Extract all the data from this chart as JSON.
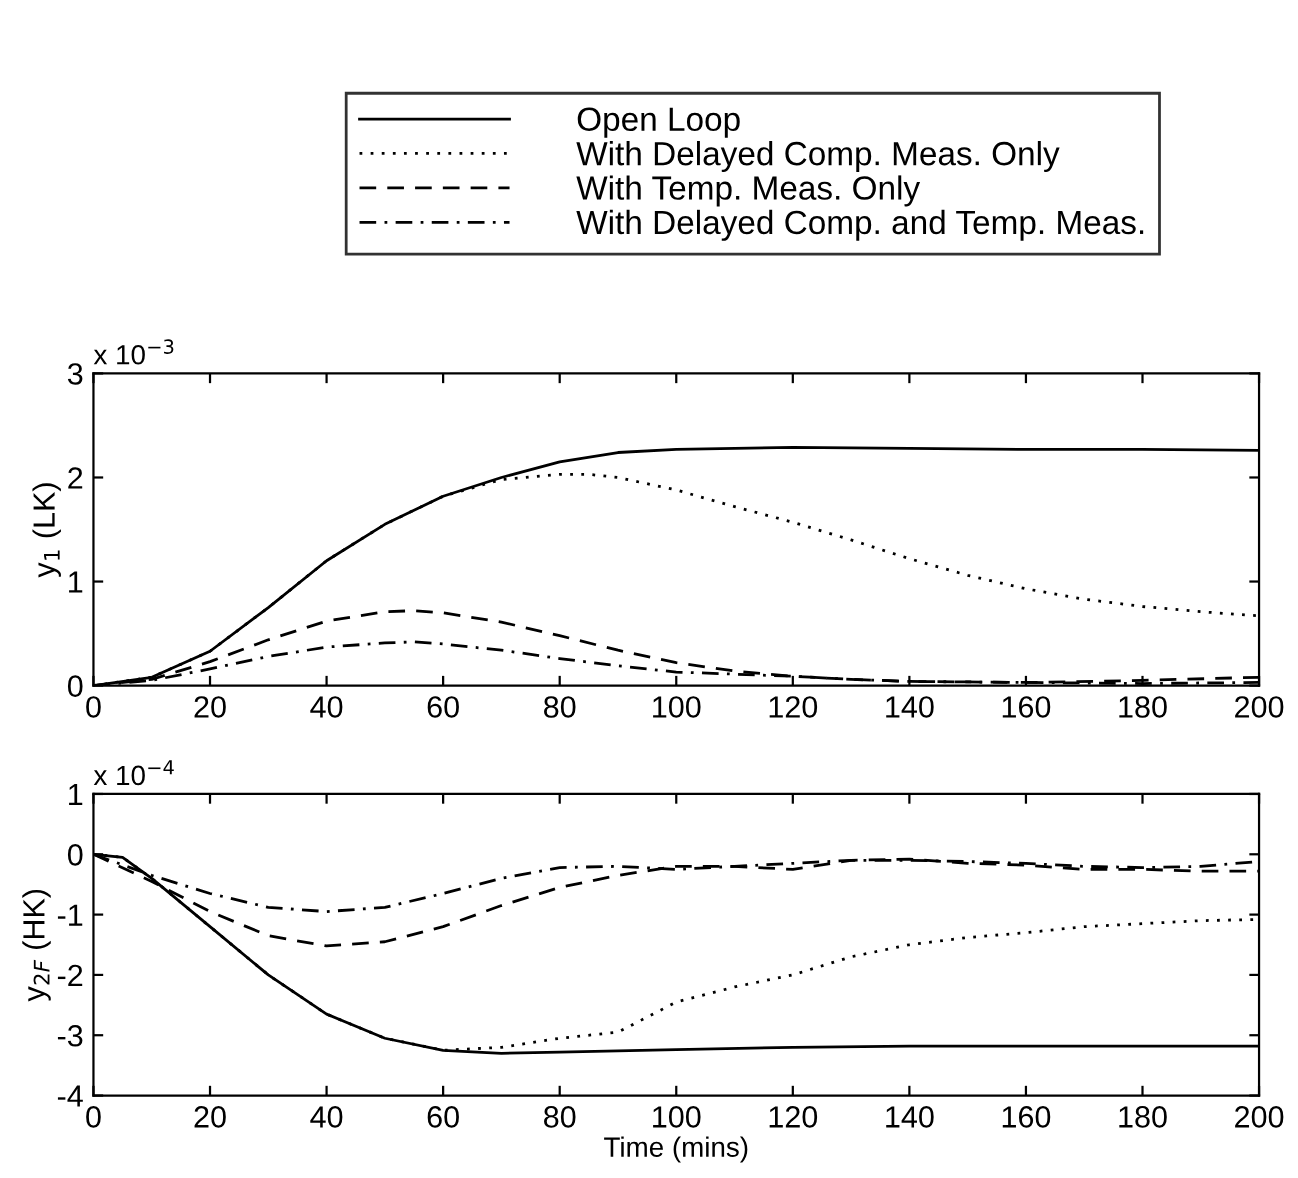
{
  "chart_data": [
    {
      "type": "line",
      "ylabel": "y$_{1}$ (LK)",
      "legend": "top",
      "grid": false,
      "tick_labels": true,
      "xlim": [
        0,
        200
      ],
      "xticks": [
        0,
        20,
        40,
        60,
        80,
        100,
        120,
        140,
        160,
        180,
        200
      ],
      "ylim": [
        0,
        3
      ],
      "yticks": [
        0,
        1,
        2,
        3
      ],
      "annotations": [
        "x 10$^{−3}$"
      ],
      "series": [
        {
          "name": "Open Loop",
          "color": "#000000",
          "line_style": "solid",
          "x": [
            0,
            10,
            20,
            30,
            40,
            50,
            60,
            70,
            80,
            90,
            100,
            120,
            140,
            160,
            180,
            200
          ],
          "values": [
            0,
            0.08,
            0.33,
            0.75,
            1.2,
            1.55,
            1.82,
            2.0,
            2.15,
            2.24,
            2.27,
            2.29,
            2.28,
            2.27,
            2.27,
            2.26
          ]
        },
        {
          "name": "With Delayed Comp. Meas. Only",
          "color": "#000000",
          "line_style": "dotted",
          "x": [
            0,
            10,
            20,
            30,
            40,
            50,
            60,
            70,
            80,
            85,
            90,
            100,
            110,
            120,
            130,
            140,
            150,
            160,
            170,
            180,
            190,
            200
          ],
          "values": [
            0,
            0.08,
            0.33,
            0.75,
            1.2,
            1.55,
            1.82,
            1.98,
            2.03,
            2.03,
            2.0,
            1.88,
            1.72,
            1.57,
            1.4,
            1.22,
            1.06,
            0.93,
            0.83,
            0.76,
            0.71,
            0.67
          ]
        },
        {
          "name": "With Temp. Meas. Only",
          "color": "#000000",
          "line_style": "dashed",
          "x": [
            0,
            10,
            20,
            30,
            40,
            50,
            55,
            60,
            70,
            80,
            90,
            100,
            110,
            120,
            130,
            140,
            160,
            180,
            200
          ],
          "values": [
            0,
            0.06,
            0.23,
            0.44,
            0.62,
            0.71,
            0.72,
            0.7,
            0.61,
            0.48,
            0.34,
            0.22,
            0.14,
            0.09,
            0.06,
            0.04,
            0.03,
            0.05,
            0.08
          ]
        },
        {
          "name": "With Delayed Comp. and Temp. Meas.",
          "color": "#000000",
          "line_style": "dashdot",
          "x": [
            0,
            10,
            20,
            30,
            40,
            50,
            55,
            60,
            70,
            80,
            90,
            100,
            110,
            120,
            130,
            140,
            160,
            180,
            200
          ],
          "values": [
            0,
            0.05,
            0.16,
            0.28,
            0.37,
            0.41,
            0.42,
            0.4,
            0.34,
            0.26,
            0.19,
            0.13,
            0.11,
            0.09,
            0.06,
            0.04,
            0.03,
            0.02,
            0.03
          ]
        }
      ]
    },
    {
      "type": "line",
      "xlabel": "Time (mins)",
      "ylabel": "y$_{2F}$ (HK)",
      "grid": false,
      "xlim": [
        0,
        200
      ],
      "xticks": [
        0,
        20,
        40,
        60,
        80,
        100,
        120,
        140,
        160,
        180,
        200
      ],
      "ylim": [
        -4,
        1
      ],
      "yticks": [
        -4,
        -3,
        -2,
        -1,
        0,
        1
      ],
      "annotations": [
        "x 10$^{−4}$"
      ],
      "series": [
        {
          "color": "#000000",
          "line_style": "solid",
          "x": [
            0,
            5,
            10,
            20,
            30,
            40,
            50,
            60,
            70,
            80,
            100,
            120,
            140,
            160,
            200
          ],
          "values": [
            0,
            -0.05,
            -0.4,
            -1.2,
            -2.0,
            -2.65,
            -3.05,
            -3.25,
            -3.3,
            -3.28,
            -3.24,
            -3.2,
            -3.18,
            -3.18,
            -3.18
          ]
        },
        {
          "color": "#000000",
          "line_style": "dotted",
          "x": [
            0,
            5,
            10,
            20,
            30,
            40,
            50,
            60,
            70,
            80,
            90,
            95,
            100,
            110,
            120,
            130,
            140,
            150,
            160,
            170,
            180,
            190,
            200
          ],
          "values": [
            0,
            -0.05,
            -0.4,
            -1.2,
            -2.0,
            -2.65,
            -3.05,
            -3.25,
            -3.2,
            -3.05,
            -2.95,
            -2.7,
            -2.45,
            -2.2,
            -2.0,
            -1.7,
            -1.5,
            -1.38,
            -1.3,
            -1.2,
            -1.15,
            -1.1,
            -1.08
          ]
        },
        {
          "color": "#000000",
          "line_style": "dashed",
          "x": [
            0,
            10,
            20,
            30,
            40,
            50,
            60,
            70,
            80,
            90,
            100,
            110,
            120,
            130,
            140,
            150,
            160,
            170,
            180,
            190,
            200
          ],
          "values": [
            0,
            -0.45,
            -0.95,
            -1.35,
            -1.52,
            -1.45,
            -1.2,
            -0.85,
            -0.55,
            -0.35,
            -0.2,
            -0.2,
            -0.25,
            -0.1,
            -0.08,
            -0.15,
            -0.18,
            -0.25,
            -0.25,
            -0.28,
            -0.28
          ]
        },
        {
          "color": "#000000",
          "line_style": "dashdot",
          "x": [
            0,
            10,
            20,
            30,
            40,
            50,
            60,
            70,
            80,
            90,
            100,
            110,
            120,
            130,
            140,
            150,
            160,
            170,
            180,
            190,
            200
          ],
          "values": [
            0,
            -0.35,
            -0.65,
            -0.88,
            -0.95,
            -0.88,
            -0.65,
            -0.4,
            -0.22,
            -0.2,
            -0.25,
            -0.2,
            -0.15,
            -0.1,
            -0.1,
            -0.12,
            -0.15,
            -0.2,
            -0.22,
            -0.2,
            -0.12
          ]
        }
      ]
    }
  ]
}
